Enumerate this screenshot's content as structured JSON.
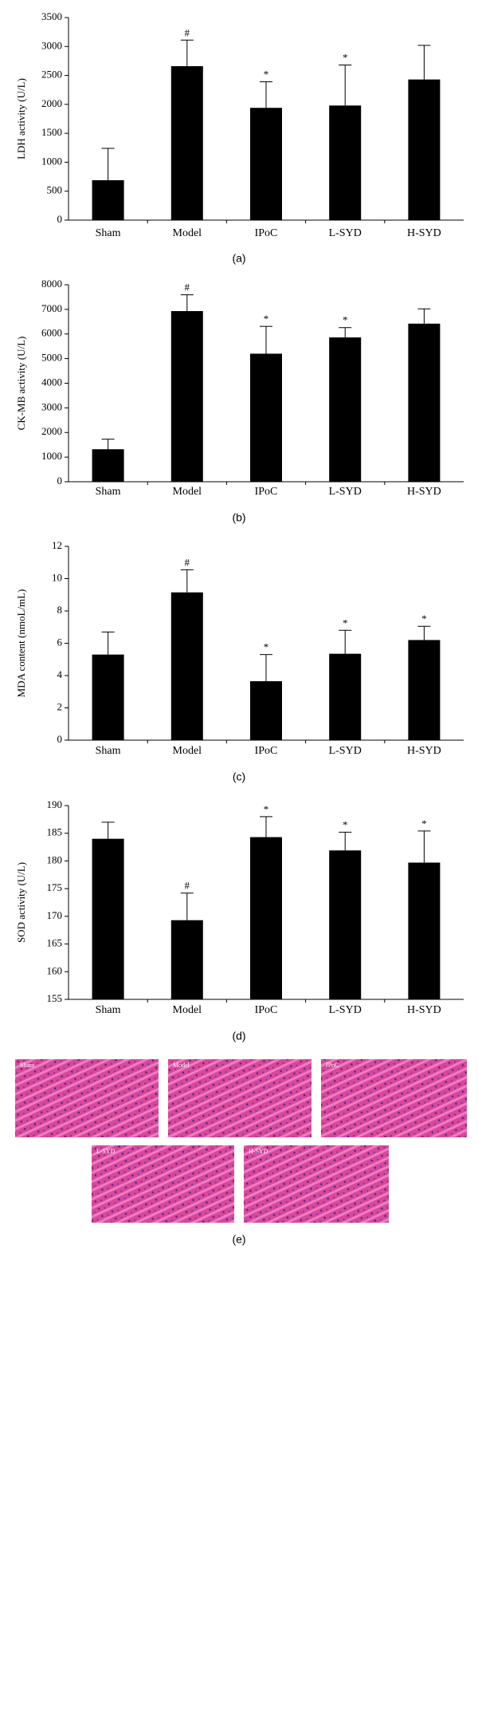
{
  "chart_data": [
    {
      "type": "bar",
      "ylabel": "LDH activity (U/L)",
      "categories": [
        "Sham",
        "Model",
        "IPoC",
        "L-SYD",
        "H-SYD"
      ],
      "values": [
        690,
        2660,
        1940,
        1980,
        2430
      ],
      "errors": [
        550,
        450,
        450,
        700,
        590
      ],
      "annotations": [
        null,
        "#",
        "*",
        "*",
        null
      ],
      "color": "#000000",
      "ylim": [
        0,
        3500
      ],
      "yticks": [
        0,
        500,
        1000,
        1500,
        2000,
        2500,
        3000,
        3500
      ],
      "caption": "(a)"
    },
    {
      "type": "bar",
      "ylabel": "CK-MB activity (U/L)",
      "categories": [
        "Sham",
        "Model",
        "IPoC",
        "L-SYD",
        "H-SYD"
      ],
      "values": [
        1320,
        6930,
        5200,
        5860,
        6420
      ],
      "errors": [
        410,
        660,
        1110,
        400,
        600
      ],
      "annotations": [
        null,
        "#",
        "*",
        "*",
        null
      ],
      "color": "#000000",
      "ylim": [
        0,
        8000
      ],
      "yticks": [
        0,
        1000,
        2000,
        3000,
        4000,
        5000,
        6000,
        7000,
        8000
      ],
      "caption": "(b)"
    },
    {
      "type": "bar",
      "ylabel": "MDA content (nmoL/mL)",
      "categories": [
        "Sham",
        "Model",
        "IPoC",
        "L-SYD",
        "H-SYD"
      ],
      "values": [
        5.3,
        9.15,
        3.65,
        5.35,
        6.2
      ],
      "errors": [
        1.4,
        1.4,
        1.65,
        1.45,
        0.85
      ],
      "annotations": [
        null,
        "#",
        "*",
        "*",
        "*"
      ],
      "color": "#000000",
      "ylim": [
        0,
        12
      ],
      "yticks": [
        0,
        2,
        4,
        6,
        8,
        10,
        12
      ],
      "caption": "(c)"
    },
    {
      "type": "bar",
      "ylabel": "SOD activity (U/L)",
      "categories": [
        "Sham",
        "Model",
        "IPoC",
        "L-SYD",
        "H-SYD"
      ],
      "values": [
        184,
        169.3,
        184.3,
        181.9,
        179.7
      ],
      "errors": [
        3,
        4.9,
        3.7,
        3.3,
        5.7
      ],
      "annotations": [
        null,
        "#",
        "*",
        "*",
        "*"
      ],
      "color": "#000000",
      "ylim": [
        155,
        190
      ],
      "yticks": [
        155,
        160,
        165,
        170,
        175,
        180,
        185,
        190
      ],
      "caption": "(d)"
    }
  ],
  "figure_e": {
    "caption": "(e)",
    "images": [
      {
        "label": "Sham"
      },
      {
        "label": "Model"
      },
      {
        "label": "IPoC"
      },
      {
        "label": "L-SYD"
      },
      {
        "label": "H-SYD"
      }
    ]
  }
}
